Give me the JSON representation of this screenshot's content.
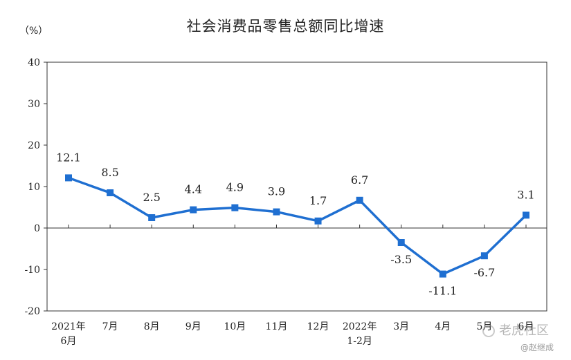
{
  "title": "社会消费品零售总额同比增速",
  "unit": "（%）",
  "watermark": {
    "main": "老虎社区",
    "sub": "@赵继成"
  },
  "chart_data": {
    "type": "line",
    "title": "社会消费品零售总额同比增速",
    "ylabel": "（%）",
    "xlabel": "",
    "ylim": [
      -20,
      40
    ],
    "yticks": [
      -20,
      -10,
      0,
      10,
      20,
      30,
      40
    ],
    "grid": false,
    "color": "#1f6fd1",
    "categories": [
      [
        "2021年",
        "6月"
      ],
      [
        "7月"
      ],
      [
        "8月"
      ],
      [
        "9月"
      ],
      [
        "10月"
      ],
      [
        "11月"
      ],
      [
        "12月"
      ],
      [
        "2022年",
        "1-2月"
      ],
      [
        "3月"
      ],
      [
        "4月"
      ],
      [
        "5月"
      ],
      [
        "6月"
      ]
    ],
    "values": [
      12.1,
      8.5,
      2.5,
      4.4,
      4.9,
      3.9,
      1.7,
      6.7,
      -3.5,
      -11.1,
      -6.7,
      3.1
    ],
    "data_labels": [
      "12.1",
      "8.5",
      "2.5",
      "4.4",
      "4.9",
      "3.9",
      "1.7",
      "6.7",
      "-3.5",
      "-11.1",
      "-6.7",
      "3.1"
    ]
  }
}
